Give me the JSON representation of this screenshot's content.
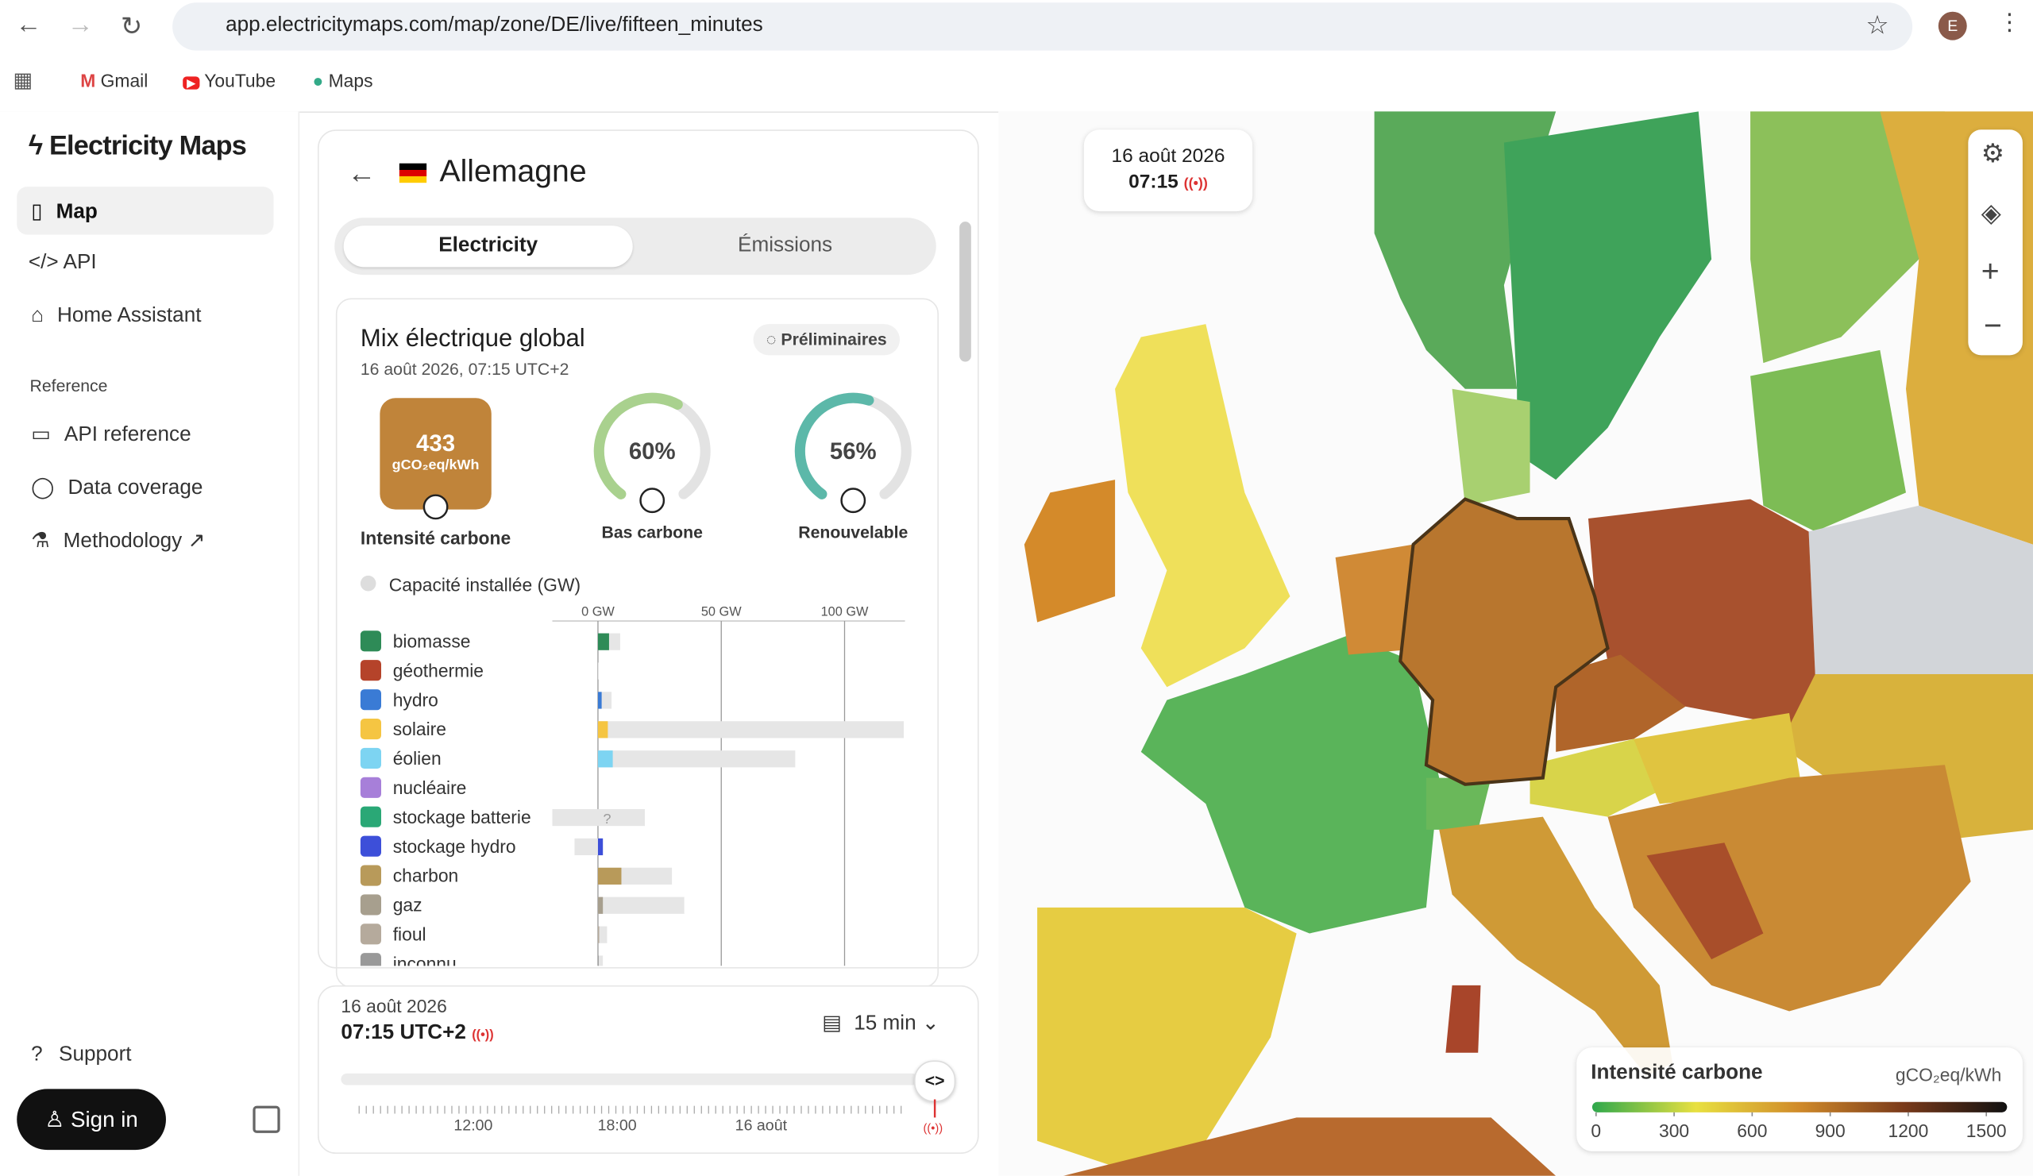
{
  "browser": {
    "url": "app.electricitymaps.com/map/zone/DE/live/fifteen_minutes",
    "profile": "E",
    "bookmarks": [
      "Gmail",
      "YouTube",
      "Maps"
    ]
  },
  "sidebar": {
    "brand": "Electricity Maps",
    "nav": [
      "Map",
      "API",
      "Home Assistant"
    ],
    "reference_heading": "Reference",
    "reference": [
      "API reference",
      "Data coverage",
      "Methodology"
    ],
    "support": "Support",
    "sign_in": "Sign in"
  },
  "zone_panel": {
    "title": "Allemagne",
    "tabs": [
      "Electricity",
      "Émissions"
    ],
    "card_title": "Mix électrique global",
    "card_date": "16 août 2026, 07:15 UTC+2",
    "badge": "Préliminaires",
    "carbon_intensity": {
      "value": 433,
      "unit": "gCO₂eq/kWh",
      "label": "Intensité carbone",
      "color": "#c0843a"
    },
    "gauges": [
      {
        "value": 60,
        "label": "60%",
        "name": "Bas carbone",
        "color": "#a9d18e"
      },
      {
        "value": 56,
        "label": "56%",
        "name": "Renouvelable",
        "color": "#5cb8a9"
      }
    ],
    "capacity_toggle": "Capacité installée (GW)",
    "capacity_chart": {
      "xlim": [
        -18.5,
        124.5
      ],
      "xticks": [
        {
          "value": 0,
          "label": "0 GW"
        },
        {
          "value": 50,
          "label": "50 GW"
        },
        {
          "value": 100,
          "label": "100 GW"
        }
      ],
      "rows": [
        {
          "name": "biomasse",
          "color": "#2e8b57",
          "production": 4.5,
          "capacity": [
            0,
            9
          ]
        },
        {
          "name": "géothermie",
          "color": "#b5432a",
          "production": 0,
          "capacity": [
            0,
            0.3
          ]
        },
        {
          "name": "hydro",
          "color": "#3a7bd5",
          "production": 1.5,
          "capacity": [
            0,
            5.5
          ]
        },
        {
          "name": "solaire",
          "color": "#f5c542",
          "production": 4,
          "capacity": [
            0,
            124
          ]
        },
        {
          "name": "éolien",
          "color": "#7dd4f2",
          "production": 6,
          "capacity": [
            0,
            80
          ]
        },
        {
          "name": "nucléaire",
          "color": "#a77fd9",
          "production": 0,
          "capacity": [
            0,
            0
          ]
        },
        {
          "name": "stockage batterie",
          "color": "#2aa876",
          "production": null,
          "production_label": "?",
          "capacity": [
            -18.5,
            19
          ]
        },
        {
          "name": "stockage hydro",
          "color": "#3d4fd9",
          "production": 2,
          "capacity": [
            -9.5,
            2
          ]
        },
        {
          "name": "charbon",
          "color": "#b89a5a",
          "production": 9.5,
          "capacity": [
            0,
            30
          ]
        },
        {
          "name": "gaz",
          "color": "#a79f8e",
          "production": 2,
          "capacity": [
            0,
            35
          ]
        },
        {
          "name": "fioul",
          "color": "#b5aa9c",
          "production": 0.5,
          "capacity": [
            0,
            3.7
          ]
        },
        {
          "name": "inconnu",
          "color": "#999999",
          "production": 0.3,
          "capacity": [
            0,
            2
          ]
        }
      ]
    }
  },
  "time_panel": {
    "date": "16 août 2026",
    "time": "07:15 UTC+2",
    "resolution": "15 min",
    "axis_labels": [
      "12:00",
      "18:00",
      "16 août"
    ]
  },
  "map": {
    "date": "16 août 2026",
    "time": "07:15"
  },
  "legend": {
    "title": "Intensité carbone",
    "unit": "gCO₂eq/kWh",
    "lim": [
      0,
      1500
    ],
    "ticks": [
      0,
      300,
      600,
      900,
      1200,
      1500
    ],
    "gradient": [
      "#2ea84c",
      "#e8e040",
      "#d08a2a",
      "#7a3a1a",
      "#111111"
    ]
  }
}
